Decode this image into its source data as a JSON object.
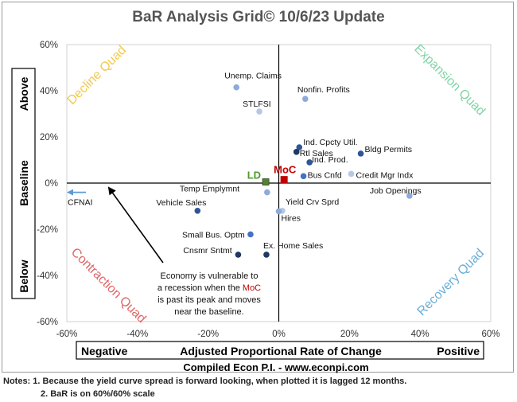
{
  "chart_data": {
    "type": "scatter",
    "title": "BaR Analysis Grid© 10/6/23 Update",
    "xlim": [
      -0.6,
      0.6
    ],
    "ylim": [
      -0.6,
      0.6
    ],
    "x_ticks": [
      "-60%",
      "-40%",
      "-20%",
      "0%",
      "20%",
      "40%",
      "60%"
    ],
    "y_ticks": [
      "60%",
      "40%",
      "20%",
      "0%",
      "-20%",
      "-40%",
      "-60%"
    ],
    "x_axis_label": {
      "left": "Negative",
      "center": "Adjusted Proportional Rate of Change",
      "right": "Positive"
    },
    "y_axis_label": {
      "top": "Above",
      "middle": "Baseline",
      "bottom": "Below"
    },
    "quadrant_labels": [
      {
        "text": "Decline Quad",
        "color": "#f2c94c"
      },
      {
        "text": "Expansion Quad",
        "color": "#7fd6a6"
      },
      {
        "text": "Contraction Quad",
        "color": "#e06666"
      },
      {
        "text": "Recovery Quad",
        "color": "#6aaed6"
      }
    ],
    "points": [
      {
        "label": "Unemp. Claims",
        "x": -0.12,
        "y": 0.415,
        "color": "#8eaadb"
      },
      {
        "label": "Nonfin. Profits",
        "x": 0.075,
        "y": 0.365,
        "color": "#8eaadb"
      },
      {
        "label": "STLFSI",
        "x": -0.055,
        "y": 0.31,
        "color": "#b4c7e7"
      },
      {
        "label": "Ind. Cpcty Util.",
        "x": 0.058,
        "y": 0.155,
        "color": "#2f5597"
      },
      {
        "label": "Rtl Sales",
        "x": 0.05,
        "y": 0.135,
        "color": "#1f3864"
      },
      {
        "label": "Bldg Permits",
        "x": 0.232,
        "y": 0.128,
        "color": "#2f5597"
      },
      {
        "label": "Ind. Prod.",
        "x": 0.087,
        "y": 0.09,
        "color": "#2f5597"
      },
      {
        "label": "Bus Cnfd",
        "x": 0.07,
        "y": 0.03,
        "color": "#4472c4"
      },
      {
        "label": "Credit Mgr Indx",
        "x": 0.205,
        "y": 0.04,
        "color": "#b4c7e7"
      },
      {
        "label": "Job Openings",
        "x": 0.37,
        "y": -0.055,
        "color": "#8eaadb"
      },
      {
        "label": "Temp Emplymnt",
        "x": -0.033,
        "y": -0.04,
        "color": "#8eaadb"
      },
      {
        "label": "Yield Crv Sprd",
        "x": 0.01,
        "y": -0.12,
        "color": "#b4c7e7"
      },
      {
        "label": "Hires",
        "x": 0.0,
        "y": -0.122,
        "color": "#8eaadb"
      },
      {
        "label": "Vehicle Sales",
        "x": -0.23,
        "y": -0.12,
        "color": "#2f5597"
      },
      {
        "label": "Small Bus. Optm",
        "x": -0.08,
        "y": -0.222,
        "color": "#4472c4"
      },
      {
        "label": "Cnsmr Sntmt",
        "x": -0.115,
        "y": -0.31,
        "color": "#1f3864"
      },
      {
        "label": "Ex. Home Sales",
        "x": -0.035,
        "y": -0.31,
        "color": "#1f3864"
      }
    ],
    "ld_marker": {
      "label": "LD",
      "x": -0.037,
      "y": 0.005,
      "color": "#548235",
      "label_color": "#4e9a2a"
    },
    "moc_marker": {
      "label": "MoC",
      "x": 0.015,
      "y": 0.015,
      "color": "#c00000",
      "label_color": "#c00000"
    },
    "cfnai": {
      "label": "CFNAI",
      "color": "#5b9bd5"
    },
    "annotation_text": "Economy is vulnerable to a recession when the MoC is past its peak and moves near the baseline."
  },
  "footer": {
    "source": "Compiled Econ P.I. - www.econpi.com",
    "note_1": "Notes: 1. Because the yield curve spread is forward looking, when plotted it is lagged 12 months.",
    "note_2": "2. BaR is on 60%/60% scale"
  }
}
